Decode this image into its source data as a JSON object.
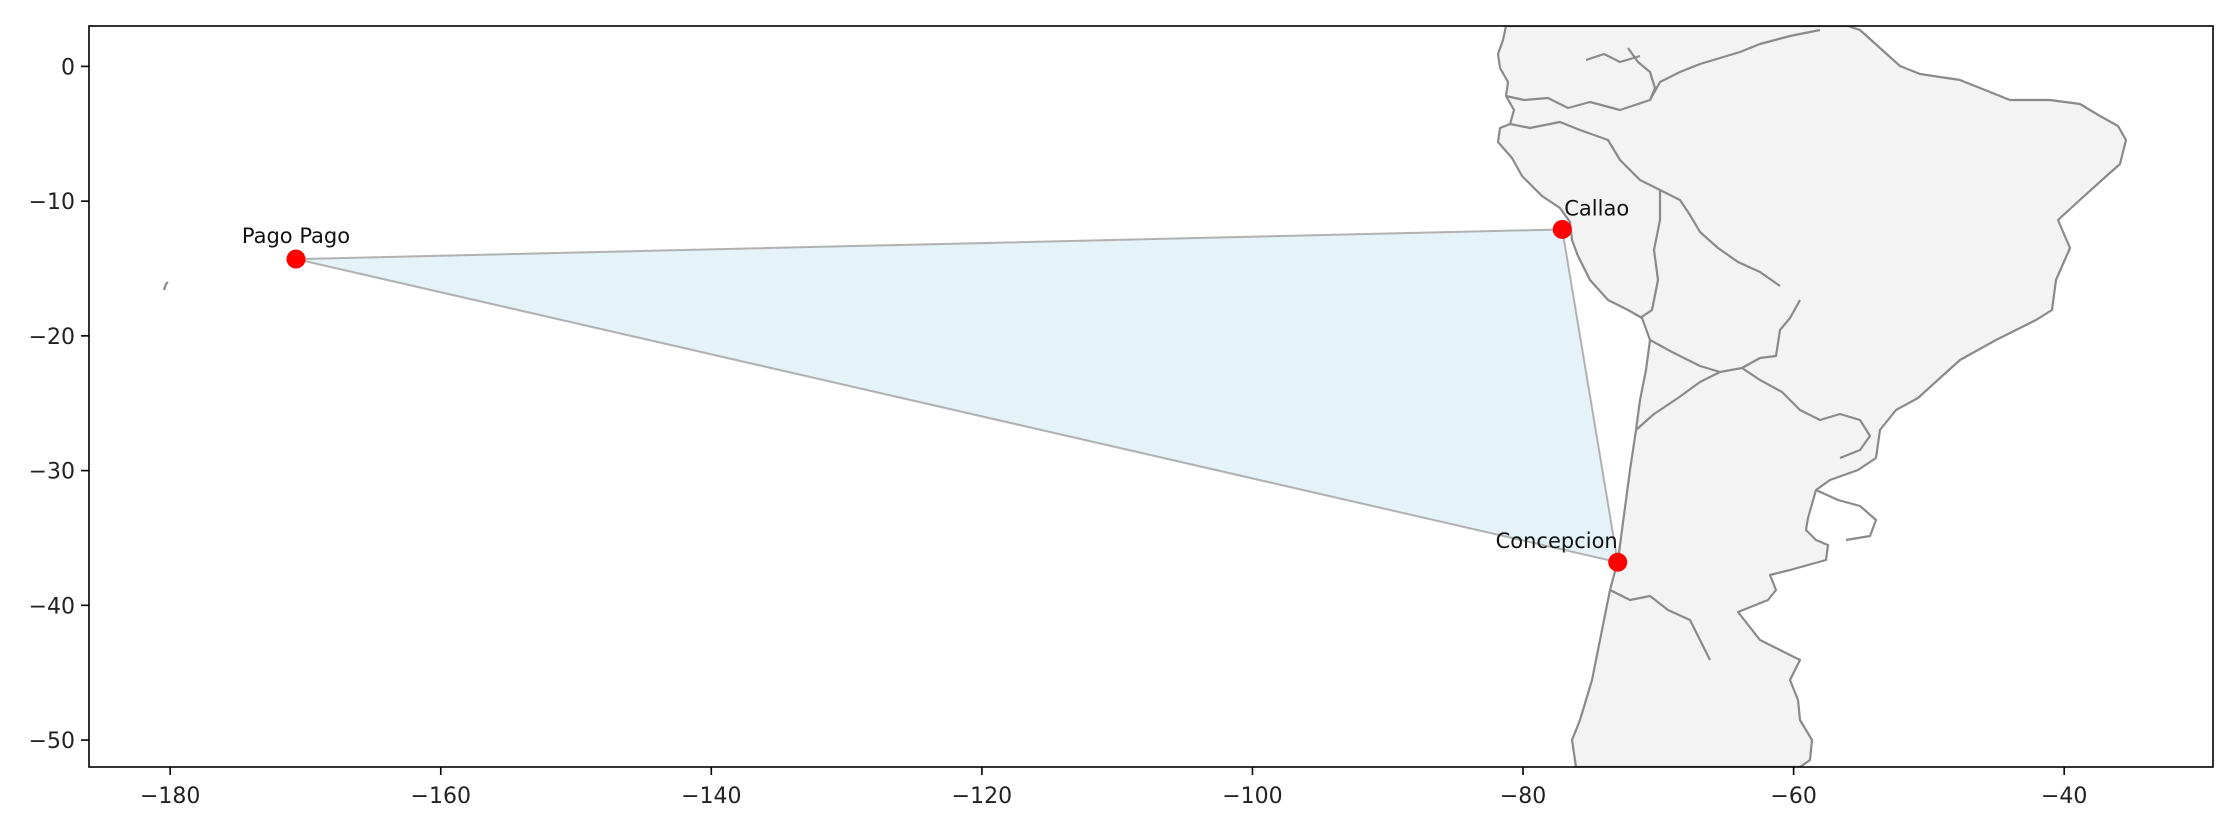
{
  "map": {
    "extent": {
      "lon": [
        -186,
        -29
      ],
      "lat": [
        -52,
        3
      ]
    },
    "x_ticks": [
      {
        "value": -180,
        "label": "−180"
      },
      {
        "value": -160,
        "label": "−160"
      },
      {
        "value": -140,
        "label": "−140"
      },
      {
        "value": -120,
        "label": "−120"
      },
      {
        "value": -100,
        "label": "−100"
      },
      {
        "value": -80,
        "label": "−80"
      },
      {
        "value": -60,
        "label": "−60"
      },
      {
        "value": -40,
        "label": "−40"
      }
    ],
    "y_ticks": [
      {
        "value": 0,
        "label": "0"
      },
      {
        "value": -10,
        "label": "−10"
      },
      {
        "value": -20,
        "label": "−20"
      },
      {
        "value": -30,
        "label": "−30"
      },
      {
        "value": -40,
        "label": "−40"
      },
      {
        "value": -50,
        "label": "−50"
      }
    ],
    "points": [
      {
        "name": "Pago Pago",
        "lon": -170.7,
        "lat": -14.3
      },
      {
        "name": "Callao",
        "lon": -77.1,
        "lat": -12.1
      },
      {
        "name": "Concepcion",
        "lon": -73.0,
        "lat": -36.8
      }
    ],
    "colors": {
      "triangle_fill": "#add8e6",
      "triangle_stroke": "#999999",
      "point": "#ff0000",
      "land_fill": "#f3f3f3",
      "land_stroke": "#8a8a8a"
    },
    "legend": "none",
    "grid": false
  }
}
